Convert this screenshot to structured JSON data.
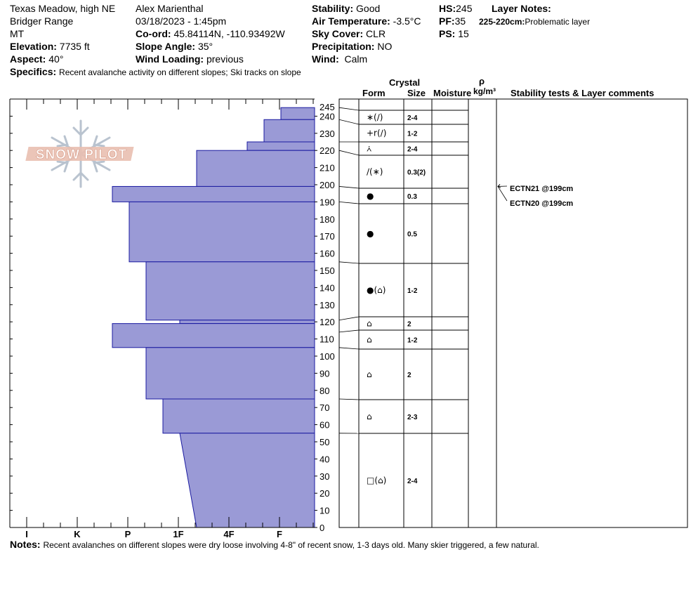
{
  "header": {
    "location": "Texas Meadow, high NE",
    "range": "Bridger Range",
    "state": "MT",
    "elevation_label": "Elevation:",
    "elevation_value": "7735 ft",
    "aspect_label": "Aspect:",
    "aspect_value": "40°",
    "observer": "Alex Marienthal",
    "datetime": "03/18/2023 - 1:45pm",
    "coord_label": "Co-ord:",
    "coord_value": "45.84114N, -110.93492W",
    "slope_label": "Slope Angle:",
    "slope_value": "35°",
    "wind_loading_label": "Wind Loading:",
    "wind_loading_value": "previous",
    "stability_label": "Stability:",
    "stability_value": "Good",
    "air_temp_label": "Air Temperature:",
    "air_temp_value": "-3.5°C",
    "sky_label": "Sky Cover:",
    "sky_value": "CLR",
    "precip_label": "Precipitation:",
    "precip_value": "NO",
    "wind_label": "Wind:",
    "wind_value": "Calm",
    "hs_label": "HS:",
    "hs_value": "245",
    "pf_label": "PF:",
    "pf_value": "35",
    "ps_label": "PS:",
    "ps_value": "15",
    "layer_notes_title": "Layer Notes:",
    "layer_note_range": "225-220cm:",
    "layer_note_text": "Problematic layer",
    "specifics_label": "Specifics:",
    "specifics_text": "Recent avalanche activity on different slopes; Ski tracks on slope"
  },
  "columns": {
    "crystal": "Crystal",
    "form": "Form",
    "size": "Size",
    "moisture": "Moisture",
    "rho": "ρ",
    "density_unit": "kg/m³",
    "stability": "Stability tests & Layer comments"
  },
  "logo_text": "SNOW PILOT",
  "notes_label": "Notes:",
  "notes_text": "Recent avalanches on different slopes were dry loose involving 4-8\" of recent snow, 1-3 days old. Many skier triggered, a few natural.",
  "colors": {
    "bar_fill": "#9a9ad6",
    "bar_stroke": "#1a1aa0",
    "logo": "#e7b7a8",
    "flake": "#b9c3cf"
  },
  "chart_data": {
    "type": "bar",
    "title": "",
    "ylabel": "",
    "xlabel": "",
    "ylim": [
      0,
      250
    ],
    "y_ticks": [
      0,
      10,
      20,
      30,
      40,
      50,
      60,
      70,
      80,
      90,
      100,
      110,
      120,
      130,
      140,
      150,
      160,
      170,
      180,
      190,
      200,
      210,
      220,
      230,
      240,
      245
    ],
    "hardness_scale": [
      "I",
      "K",
      "P",
      "1F",
      "4F",
      "F"
    ],
    "hardness_layers": [
      {
        "top": 245,
        "bottom": 238,
        "hardness": "F-"
      },
      {
        "top": 238,
        "bottom": 225,
        "hardness": "F+"
      },
      {
        "top": 225,
        "bottom": 220,
        "hardness": "4F-"
      },
      {
        "top": 220,
        "bottom": 199,
        "hardness": "4F+"
      },
      {
        "top": 199,
        "bottom": 190,
        "hardness": "P+"
      },
      {
        "top": 190,
        "bottom": 155,
        "hardness": "P"
      },
      {
        "top": 155,
        "bottom": 121,
        "hardness": "P-"
      },
      {
        "top": 121,
        "bottom": 119,
        "hardness": "1F"
      },
      {
        "top": 119,
        "bottom": 105,
        "hardness": "P+"
      },
      {
        "top": 105,
        "bottom": 75,
        "hardness": "P-"
      },
      {
        "top": 75,
        "bottom": 55,
        "hardness": "1F+"
      },
      {
        "top": 55,
        "bottom": 0,
        "hardness": "1F to 1F-",
        "sloped": true
      }
    ],
    "crystal_layers": [
      {
        "top": 245,
        "bottom": 238,
        "form": "∗(∕)",
        "size": "2-4"
      },
      {
        "top": 238,
        "bottom": 225,
        "form": "+r(∕)",
        "size": "1-2"
      },
      {
        "top": 225,
        "bottom": 220,
        "form": "⩑",
        "size": "2-4"
      },
      {
        "top": 220,
        "bottom": 199,
        "form": "∕(∗)",
        "size": "0.3(2)"
      },
      {
        "top": 199,
        "bottom": 190,
        "form": "●",
        "size": "0.3"
      },
      {
        "top": 190,
        "bottom": 155,
        "form": "●",
        "size": "0.5"
      },
      {
        "top": 155,
        "bottom": 121,
        "form": "●(⌂)",
        "size": "1-2"
      },
      {
        "top": 121,
        "bottom": 114,
        "form": "⌂",
        "size": "2"
      },
      {
        "top": 114,
        "bottom": 105,
        "form": "⌂",
        "size": "1-2"
      },
      {
        "top": 105,
        "bottom": 75,
        "form": "⌂",
        "size": "2"
      },
      {
        "top": 75,
        "bottom": 55,
        "form": "⌂",
        "size": "2-3"
      },
      {
        "top": 55,
        "bottom": 0,
        "form": "□(⌂)",
        "size": "2-4"
      }
    ],
    "stability_tests": [
      {
        "label": "ECTN21 @199cm",
        "depth": 199
      },
      {
        "label": "ECTN20 @199cm",
        "depth": 199
      }
    ]
  }
}
